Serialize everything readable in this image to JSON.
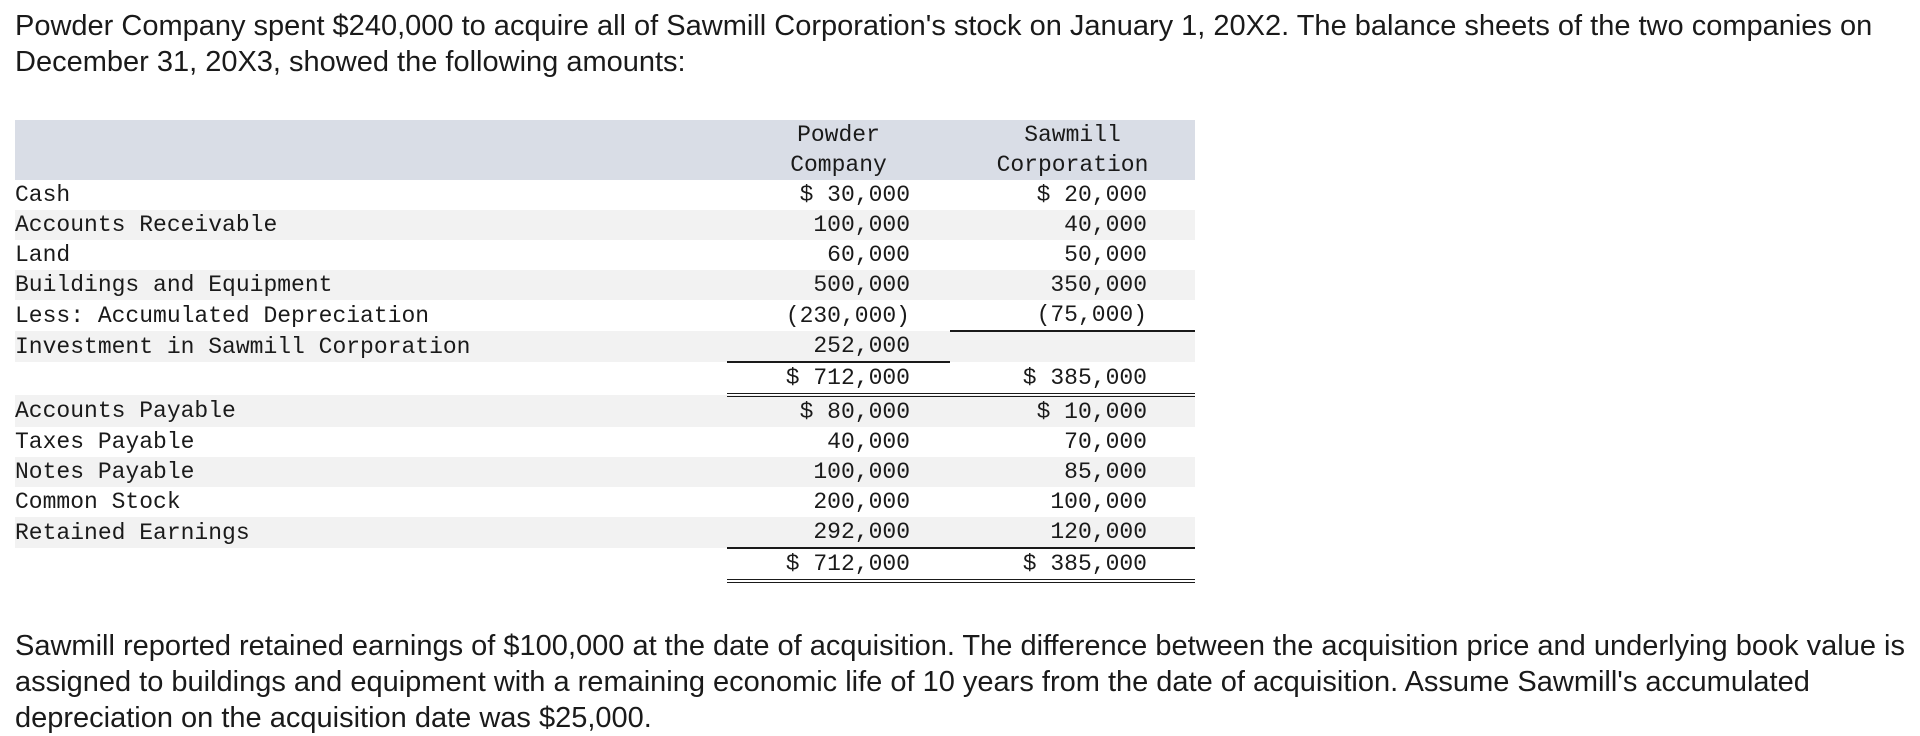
{
  "intro": "Powder Company spent $240,000 to acquire all of Sawmill Corporation's stock on January 1, 20X2. The balance sheets of the two companies on December 31, 20X3, showed the following amounts:",
  "table": {
    "header": {
      "powder_line1": "Powder",
      "powder_line2": "Company",
      "sawmill_line1": "Sawmill",
      "sawmill_line2": "Corporation"
    },
    "assets": [
      {
        "label": "Cash",
        "powder": "$ 30,000",
        "sawmill": "$ 20,000"
      },
      {
        "label": "Accounts Receivable",
        "powder": "100,000",
        "sawmill": "40,000"
      },
      {
        "label": "Land",
        "powder": "60,000",
        "sawmill": "50,000"
      },
      {
        "label": "Buildings and Equipment",
        "powder": "500,000",
        "sawmill": "350,000"
      },
      {
        "label": "Less: Accumulated Depreciation",
        "powder": "(230,000)",
        "sawmill": "(75,000)"
      },
      {
        "label": "Investment in Sawmill Corporation",
        "powder": "252,000",
        "sawmill": ""
      }
    ],
    "assets_total": {
      "powder": "$ 712,000",
      "sawmill": "$ 385,000"
    },
    "liabilities": [
      {
        "label": "Accounts Payable",
        "powder": "$ 80,000",
        "sawmill": "$ 10,000"
      },
      {
        "label": "Taxes Payable",
        "powder": "40,000",
        "sawmill": "70,000"
      },
      {
        "label": "Notes Payable",
        "powder": "100,000",
        "sawmill": "85,000"
      },
      {
        "label": "Common Stock",
        "powder": "200,000",
        "sawmill": "100,000"
      },
      {
        "label": "Retained Earnings",
        "powder": "292,000",
        "sawmill": "120,000"
      }
    ],
    "liabilities_total": {
      "powder": "$ 712,000",
      "sawmill": "$ 385,000"
    }
  },
  "note": "Sawmill reported retained earnings of $100,000 at the date of acquisition. The difference between the acquisition price and underlying book value is assigned to buildings and equipment with a remaining economic life of 10 years from the date of acquisition. Assume Sawmill's accumulated depreciation on the acquisition date was $25,000."
}
